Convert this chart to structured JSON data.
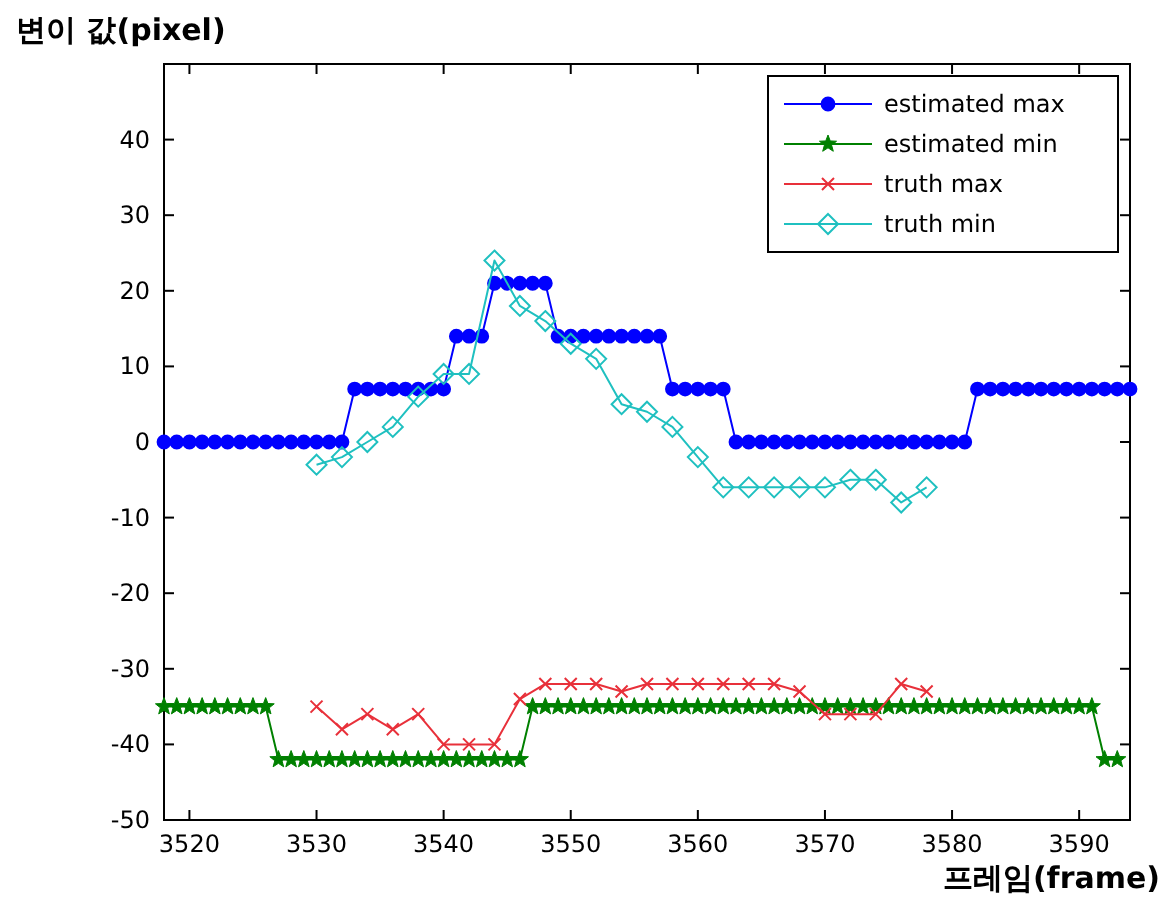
{
  "chart_data": {
    "type": "line",
    "xlabel": "프레임(frame)",
    "ylabel": "변이 값(pixel)",
    "xlim": [
      3518,
      3594
    ],
    "xticks": [
      3520,
      3530,
      3540,
      3550,
      3560,
      3570,
      3580,
      3590
    ],
    "ylim": [
      -50,
      50
    ],
    "yticks": [
      -50,
      -40,
      -30,
      -20,
      -10,
      0,
      10,
      20,
      30,
      40
    ],
    "grid": false,
    "legend": "top right",
    "series": [
      {
        "name": "estimated max",
        "color": "#0000ff",
        "marker": "circle",
        "x": [
          3518,
          3519,
          3520,
          3521,
          3522,
          3523,
          3524,
          3525,
          3526,
          3527,
          3528,
          3529,
          3530,
          3531,
          3532,
          3533,
          3534,
          3535,
          3536,
          3537,
          3538,
          3539,
          3540,
          3541,
          3542,
          3543,
          3544,
          3545,
          3546,
          3547,
          3548,
          3549,
          3550,
          3551,
          3552,
          3553,
          3554,
          3555,
          3556,
          3557,
          3558,
          3559,
          3560,
          3561,
          3562,
          3563,
          3564,
          3565,
          3566,
          3567,
          3568,
          3569,
          3570,
          3571,
          3572,
          3573,
          3574,
          3575,
          3576,
          3577,
          3578,
          3579,
          3580,
          3581,
          3582,
          3583,
          3584,
          3585,
          3586,
          3587,
          3588,
          3589,
          3590,
          3591,
          3592,
          3593,
          3594
        ],
        "values": [
          0,
          0,
          0,
          0,
          0,
          0,
          0,
          0,
          0,
          0,
          0,
          0,
          0,
          0,
          0,
          7,
          7,
          7,
          7,
          7,
          7,
          7,
          7,
          14,
          14,
          14,
          21,
          21,
          21,
          21,
          21,
          14,
          14,
          14,
          14,
          14,
          14,
          14,
          14,
          14,
          7,
          7,
          7,
          7,
          7,
          0,
          0,
          0,
          0,
          0,
          0,
          0,
          0,
          0,
          0,
          0,
          0,
          0,
          0,
          0,
          0,
          0,
          0,
          0,
          7,
          7,
          7,
          7,
          7,
          7,
          7,
          7,
          7,
          7,
          7,
          7,
          7
        ]
      },
      {
        "name": "estimated min",
        "color": "#008000",
        "marker": "star",
        "x": [
          3518,
          3519,
          3520,
          3521,
          3522,
          3523,
          3524,
          3525,
          3526,
          3527,
          3528,
          3529,
          3530,
          3531,
          3532,
          3533,
          3534,
          3535,
          3536,
          3537,
          3538,
          3539,
          3540,
          3541,
          3542,
          3543,
          3544,
          3545,
          3546,
          3547,
          3548,
          3549,
          3550,
          3551,
          3552,
          3553,
          3554,
          3555,
          3556,
          3557,
          3558,
          3559,
          3560,
          3561,
          3562,
          3563,
          3564,
          3565,
          3566,
          3567,
          3568,
          3569,
          3570,
          3571,
          3572,
          3573,
          3574,
          3575,
          3576,
          3577,
          3578,
          3579,
          3580,
          3581,
          3582,
          3583,
          3584,
          3585,
          3586,
          3587,
          3588,
          3589,
          3590,
          3591,
          3592,
          3593
        ],
        "values": [
          -35,
          -35,
          -35,
          -35,
          -35,
          -35,
          -35,
          -35,
          -35,
          -42,
          -42,
          -42,
          -42,
          -42,
          -42,
          -42,
          -42,
          -42,
          -42,
          -42,
          -42,
          -42,
          -42,
          -42,
          -42,
          -42,
          -42,
          -42,
          -42,
          -35,
          -35,
          -35,
          -35,
          -35,
          -35,
          -35,
          -35,
          -35,
          -35,
          -35,
          -35,
          -35,
          -35,
          -35,
          -35,
          -35,
          -35,
          -35,
          -35,
          -35,
          -35,
          -35,
          -35,
          -35,
          -35,
          -35,
          -35,
          -35,
          -35,
          -35,
          -35,
          -35,
          -35,
          -35,
          -35,
          -35,
          -35,
          -35,
          -35,
          -35,
          -35,
          -35,
          -35,
          -35,
          -42,
          -42
        ]
      },
      {
        "name": "truth max",
        "color": "#e8303a",
        "marker": "cross",
        "x": [
          3530,
          3532,
          3534,
          3536,
          3538,
          3540,
          3542,
          3544,
          3546,
          3548,
          3550,
          3552,
          3554,
          3556,
          3558,
          3560,
          3562,
          3564,
          3566,
          3568,
          3570,
          3572,
          3574,
          3576,
          3578
        ],
        "values": [
          -35,
          -38,
          -36,
          -38,
          -36,
          -40,
          -40,
          -40,
          -34,
          -32,
          -32,
          -32,
          -33,
          -32,
          -32,
          -32,
          -32,
          -32,
          -32,
          -33,
          -36,
          -36,
          -36,
          -32,
          -33
        ]
      },
      {
        "name": "truth min",
        "color": "#1fc0c0",
        "marker": "diamond",
        "x": [
          3530,
          3532,
          3534,
          3536,
          3538,
          3540,
          3542,
          3544,
          3546,
          3548,
          3550,
          3552,
          3554,
          3556,
          3558,
          3560,
          3562,
          3564,
          3566,
          3568,
          3570,
          3572,
          3574,
          3576,
          3578
        ],
        "values": [
          -3,
          -2,
          0,
          2,
          6,
          9,
          9,
          24,
          18,
          16,
          13,
          11,
          5,
          4,
          2,
          -2,
          -6,
          -6,
          -6,
          -6,
          -6,
          -5,
          -5,
          -8,
          -6
        ]
      }
    ]
  }
}
